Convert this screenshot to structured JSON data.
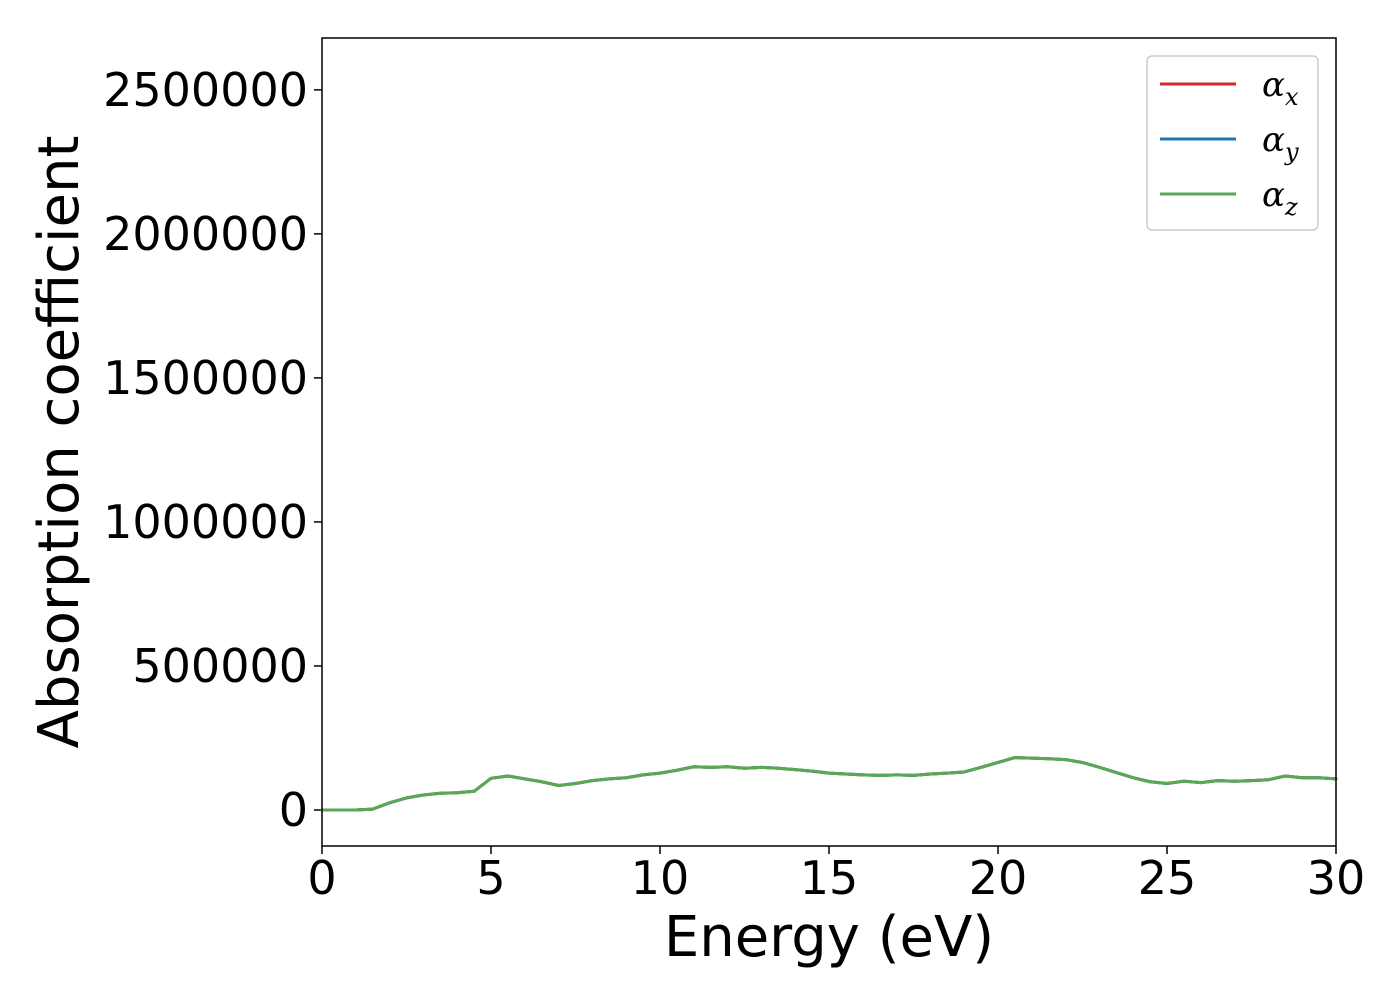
{
  "chart_data": {
    "type": "line",
    "title": "",
    "xlabel": "Energy (eV)",
    "ylabel": "Absorption coefficient",
    "xlim": [
      0,
      30
    ],
    "ylim": [
      -125000,
      2680000
    ],
    "xticks": [
      0,
      5,
      10,
      15,
      20,
      25,
      30
    ],
    "xtick_labels": [
      "0",
      "5",
      "10",
      "15",
      "20",
      "25",
      "30"
    ],
    "yticks": [
      0,
      500000,
      1000000,
      1500000,
      2000000,
      2500000
    ],
    "ytick_labels": [
      "0",
      "500000",
      "1000000",
      "1500000",
      "2000000",
      "2500000"
    ],
    "grid": false,
    "legend_position": "top-right",
    "x": [
      0,
      0.5,
      1.0,
      1.5,
      2.0,
      2.5,
      3.0,
      3.5,
      4.0,
      4.5,
      5.0,
      5.5,
      6.0,
      6.5,
      7.0,
      7.5,
      8.0,
      8.5,
      9.0,
      9.5,
      10.0,
      10.5,
      11.0,
      11.5,
      12.0,
      12.5,
      13.0,
      13.5,
      14.0,
      14.5,
      15.0,
      15.5,
      16.0,
      16.5,
      17.0,
      17.5,
      18.0,
      18.5,
      19.0,
      19.5,
      20.0,
      20.5,
      21.0,
      21.5,
      22.0,
      22.5,
      23.0,
      23.5,
      24.0,
      24.5,
      25.0,
      25.5,
      26.0,
      26.5,
      27.0,
      27.5,
      28.0,
      28.5,
      29.0,
      29.5,
      30.0
    ],
    "series": [
      {
        "name": "α",
        "subscript": "x",
        "color": "#d62728",
        "values": [
          0,
          0,
          0,
          3000,
          25000,
          42000,
          52000,
          58000,
          60000,
          65000,
          110000,
          118000,
          108000,
          98000,
          85000,
          92000,
          102000,
          108000,
          112000,
          122000,
          128000,
          138000,
          150000,
          148000,
          150000,
          145000,
          148000,
          145000,
          140000,
          135000,
          128000,
          125000,
          122000,
          120000,
          122000,
          120000,
          125000,
          128000,
          132000,
          148000,
          165000,
          182000,
          180000,
          178000,
          175000,
          165000,
          148000,
          130000,
          112000,
          98000,
          92000,
          100000,
          95000,
          102000,
          100000,
          102000,
          105000,
          118000,
          112000,
          112000,
          108000
        ]
      },
      {
        "name": "α",
        "subscript": "y",
        "color": "#1f77b4",
        "values": [
          0,
          0,
          0,
          3000,
          25000,
          42000,
          52000,
          58000,
          60000,
          65000,
          110000,
          118000,
          108000,
          98000,
          85000,
          92000,
          102000,
          108000,
          112000,
          122000,
          128000,
          138000,
          150000,
          148000,
          150000,
          145000,
          148000,
          145000,
          140000,
          135000,
          128000,
          125000,
          122000,
          120000,
          122000,
          120000,
          125000,
          128000,
          132000,
          148000,
          165000,
          182000,
          180000,
          178000,
          175000,
          165000,
          148000,
          130000,
          112000,
          98000,
          92000,
          100000,
          95000,
          102000,
          100000,
          102000,
          105000,
          118000,
          112000,
          112000,
          108000
        ]
      },
      {
        "name": "α",
        "subscript": "z",
        "color": "#5aa854",
        "values": [
          0,
          0,
          0,
          3000,
          25000,
          42000,
          52000,
          58000,
          60000,
          65000,
          110000,
          118000,
          108000,
          98000,
          85000,
          92000,
          102000,
          108000,
          112000,
          122000,
          128000,
          138000,
          150000,
          148000,
          150000,
          145000,
          148000,
          145000,
          140000,
          135000,
          128000,
          125000,
          122000,
          120000,
          122000,
          120000,
          125000,
          128000,
          132000,
          148000,
          165000,
          182000,
          180000,
          178000,
          175000,
          165000,
          148000,
          130000,
          112000,
          98000,
          92000,
          100000,
          95000,
          102000,
          100000,
          102000,
          105000,
          118000,
          112000,
          112000,
          108000
        ]
      }
    ]
  }
}
